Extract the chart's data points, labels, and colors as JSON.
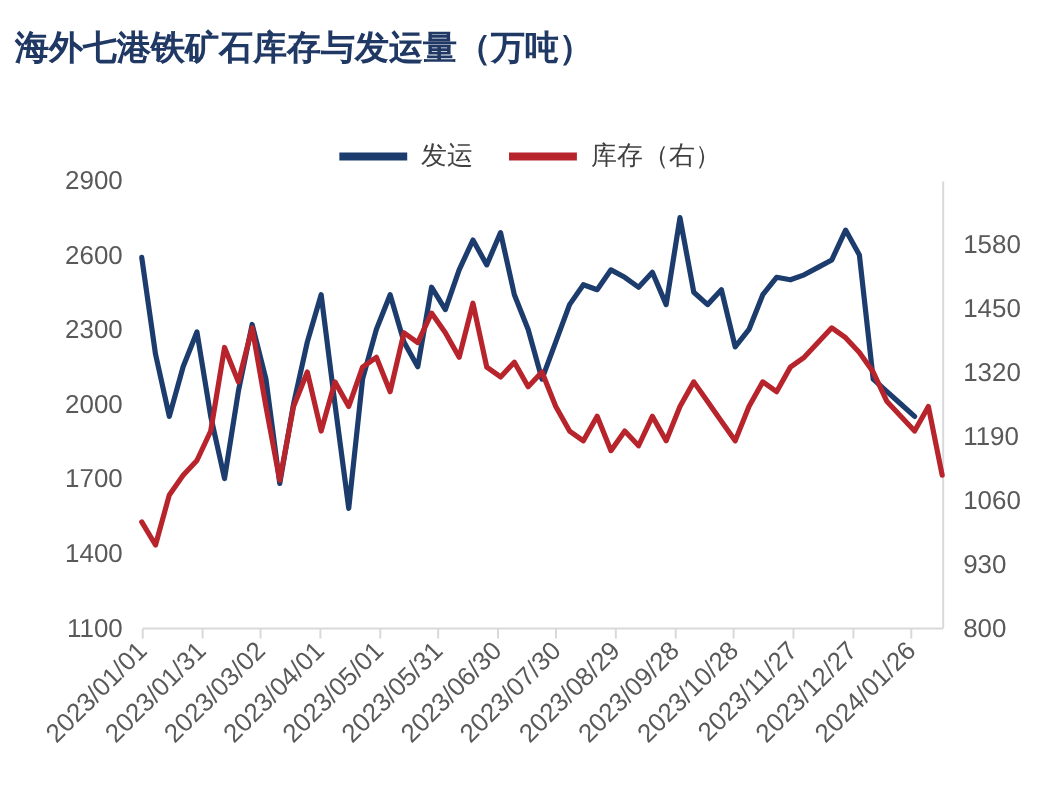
{
  "chart_data": {
    "type": "line",
    "title": "海外七港铁矿石库存与发运量（万吨）",
    "x": [
      "2023-01-01",
      "2023-01-08",
      "2023-01-15",
      "2023-01-22",
      "2023-01-29",
      "2023-02-05",
      "2023-02-12",
      "2023-02-19",
      "2023-02-26",
      "2023-03-05",
      "2023-03-12",
      "2023-03-19",
      "2023-03-26",
      "2023-04-02",
      "2023-04-09",
      "2023-04-16",
      "2023-04-23",
      "2023-04-30",
      "2023-05-07",
      "2023-05-14",
      "2023-05-21",
      "2023-05-28",
      "2023-06-04",
      "2023-06-11",
      "2023-06-18",
      "2023-06-25",
      "2023-07-02",
      "2023-07-09",
      "2023-07-16",
      "2023-07-23",
      "2023-07-30",
      "2023-08-06",
      "2023-08-13",
      "2023-08-20",
      "2023-08-27",
      "2023-09-03",
      "2023-09-10",
      "2023-09-17",
      "2023-09-24",
      "2023-10-01",
      "2023-10-08",
      "2023-10-15",
      "2023-10-22",
      "2023-10-29",
      "2023-11-05",
      "2023-11-12",
      "2023-11-19",
      "2023-11-26",
      "2023-12-03",
      "2023-12-10",
      "2023-12-17",
      "2023-12-24",
      "2023-12-31",
      "2024-01-07",
      "2024-01-14",
      "2024-01-21",
      "2024-01-28",
      "2024-02-04",
      "2024-02-11"
    ],
    "series": [
      {
        "name": "发运",
        "color": "#1d3c6e",
        "values": [
          2590,
          2200,
          1950,
          2150,
          2290,
          1950,
          1700,
          2050,
          2320,
          2100,
          1680,
          2000,
          2250,
          2440,
          2000,
          1580,
          2100,
          2300,
          2440,
          2250,
          2150,
          2470,
          2380,
          2540,
          2660,
          2560,
          2690,
          2440,
          2300,
          2100,
          2250,
          2400,
          2480,
          2460,
          2540,
          2510,
          2470,
          2530,
          2400,
          2750,
          2450,
          2400,
          2460,
          2230,
          2300,
          2440,
          2510,
          2500,
          2520,
          2550,
          2580,
          2700,
          2600,
          2100,
          2050,
          2000,
          1950,
          null,
          null
        ]
      },
      {
        "name": "库存（右）",
        "color": "#b7242c",
        "axis": "y2",
        "values": [
          1015,
          968,
          1070,
          1110,
          1140,
          1200,
          1370,
          1300,
          1410,
          1250,
          1100,
          1250,
          1320,
          1200,
          1300,
          1250,
          1330,
          1350,
          1280,
          1400,
          1380,
          1440,
          1400,
          1350,
          1460,
          1330,
          1310,
          1340,
          1290,
          1320,
          1250,
          1200,
          1180,
          1230,
          1160,
          1200,
          1170,
          1230,
          1180,
          1250,
          1300,
          1260,
          1220,
          1180,
          1250,
          1300,
          1280,
          1330,
          1350,
          1380,
          1410,
          1390,
          1360,
          1320,
          1260,
          1230,
          1200,
          1250,
          1110
        ]
      }
    ],
    "xlim": [
      "2023-01-01",
      "2024-02-11"
    ],
    "xticks": [
      {
        "value": "2023-01-01",
        "label": "2023/01/01"
      },
      {
        "value": "2023-01-31",
        "label": "2023/01/31"
      },
      {
        "value": "2023-03-02",
        "label": "2023/03/02"
      },
      {
        "value": "2023-04-01",
        "label": "2023/04/01"
      },
      {
        "value": "2023-05-01",
        "label": "2023/05/01"
      },
      {
        "value": "2023-05-31",
        "label": "2023/05/31"
      },
      {
        "value": "2023-06-30",
        "label": "2023/06/30"
      },
      {
        "value": "2023-07-30",
        "label": "2023/07/30"
      },
      {
        "value": "2023-08-29",
        "label": "2023/08/29"
      },
      {
        "value": "2023-09-28",
        "label": "2023/09/28"
      },
      {
        "value": "2023-10-28",
        "label": "2023/10/28"
      },
      {
        "value": "2023-11-27",
        "label": "2023/11/27"
      },
      {
        "value": "2023-12-27",
        "label": "2023/12/27"
      },
      {
        "value": "2024-01-26",
        "label": "2024/01/26"
      }
    ],
    "ylim": [
      1100,
      2900
    ],
    "yticks": [
      1100,
      1400,
      1700,
      2000,
      2300,
      2600,
      2900
    ],
    "y2lim": [
      800,
      1710
    ],
    "y2ticks": [
      800,
      930,
      1060,
      1190,
      1320,
      1450,
      1580
    ],
    "legend": "top"
  }
}
